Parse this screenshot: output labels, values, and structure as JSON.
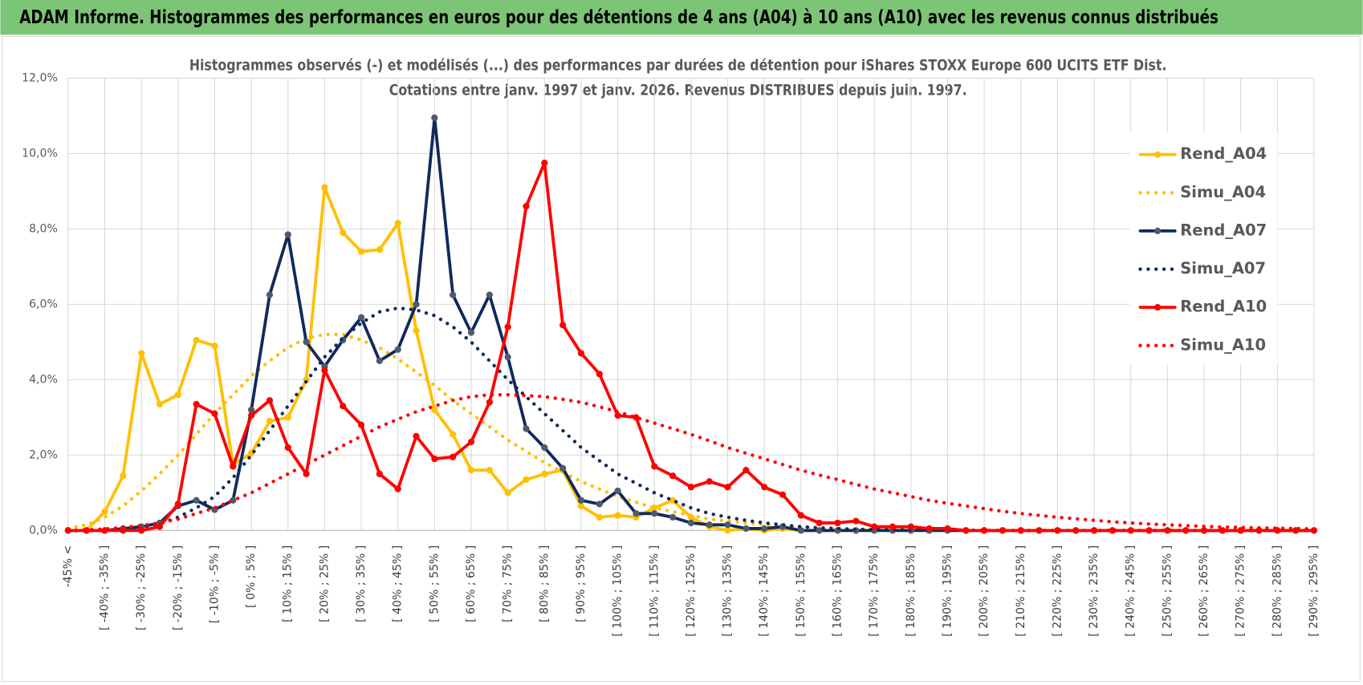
{
  "header": {
    "title": "ADAM Informe. Histogrammes des performances en euros pour des détentions de 4 ans (A04) à 10 ans (A10) avec les revenus connus distribués"
  },
  "chart_data": {
    "type": "line",
    "title": "Histogrammes observés (-) et modélisés (...) des performances par durées de détention pour iShares STOXX Europe 600 UCITS ETF Dist.",
    "subtitle": "Cotations entre janv. 1997 et janv. 2026. Revenus DISTRIBUES depuis juin. 1997.",
    "categories": [
      "-45% <",
      null,
      "[ -40% ; -35% ]",
      null,
      "[ -30% ; -25% ]",
      null,
      "[ -20% ; -15% ]",
      null,
      "[ -10% ; -5% ]",
      null,
      "[ 0% ; 5% ]",
      null,
      "[ 10% ; 15% ]",
      null,
      "[ 20% ; 25% ]",
      null,
      "[ 30% ; 35% ]",
      null,
      "[ 40% ; 45% ]",
      null,
      "[ 50% ; 55% ]",
      null,
      "[ 60% ; 65% ]",
      null,
      "[ 70% ; 75% ]",
      null,
      "[ 80% ; 85% ]",
      null,
      "[ 90% ; 95% ]",
      null,
      "[ 100% ; 105% ]",
      null,
      "[ 110% ; 115% ]",
      null,
      "[ 120% ; 125% ]",
      null,
      "[ 130% ; 135% ]",
      null,
      "[ 140% ; 145% ]",
      null,
      "[ 150% ; 155% ]",
      null,
      "[ 160% ; 165% ]",
      null,
      "[ 170% ; 175% ]",
      null,
      "[ 180% ; 185% ]",
      null,
      "[ 190% ; 195% ]",
      null,
      "[ 200% ; 205% ]",
      null,
      "[ 210% ; 215% ]",
      null,
      "[ 220% ; 225% ]",
      null,
      "[ 230% ; 235% ]",
      null,
      "[ 240% ; 245% ]",
      null,
      "[ 250% ; 255% ]",
      null,
      "[ 260% ; 265% ]",
      null,
      "[ 270% ; 275% ]",
      null,
      "[ 280% ; 285% ]",
      null,
      "[ 290% ; 295% ]"
    ],
    "series": [
      {
        "name": "Rend_A04",
        "color": "#ffc000",
        "line_style": "solid",
        "marker": true,
        "marker_color": "#ffc000",
        "values": [
          0,
          0,
          0.5,
          1.45,
          4.7,
          3.35,
          3.6,
          5.05,
          4.9,
          1.75,
          2.05,
          2.9,
          3.0,
          4.0,
          9.1,
          7.9,
          7.4,
          7.45,
          8.15,
          5.3,
          3.2,
          2.55,
          1.6,
          1.6,
          1.0,
          1.35,
          1.5,
          1.6,
          0.65,
          0.35,
          0.4,
          0.35,
          0.6,
          0.8,
          0.35,
          0.1,
          0,
          0.05,
          0,
          0.05,
          0,
          0,
          0,
          0,
          0,
          0,
          0,
          0,
          0,
          0,
          0,
          0,
          0,
          0,
          0,
          0,
          0,
          0,
          0,
          0,
          0,
          0,
          0,
          0,
          0,
          0,
          0,
          0,
          0
        ]
      },
      {
        "name": "Simu_A04",
        "color": "#ffc000",
        "line_style": "dotted",
        "marker": false,
        "values": [
          0.05,
          0.15,
          0.35,
          0.65,
          1.05,
          1.5,
          2.0,
          2.55,
          3.1,
          3.6,
          4.1,
          4.5,
          4.85,
          5.1,
          5.2,
          5.2,
          5.05,
          4.85,
          4.55,
          4.2,
          3.85,
          3.45,
          3.1,
          2.75,
          2.4,
          2.1,
          1.8,
          1.55,
          1.3,
          1.1,
          0.9,
          0.75,
          0.6,
          0.5,
          0.4,
          0.3,
          0.25,
          0.2,
          0.15,
          0.1,
          0.1,
          0.05,
          0.04,
          0.03,
          0.03,
          0.02,
          0.02,
          0.01,
          0.01,
          0,
          0,
          0,
          0,
          0,
          0,
          0,
          0,
          0,
          0,
          0,
          0,
          0,
          0,
          0,
          0,
          0,
          0,
          0,
          0
        ]
      },
      {
        "name": "Rend_A07",
        "color": "#0f2a5c",
        "line_style": "solid",
        "marker": true,
        "marker_color": "#4d5b6b",
        "values": [
          0,
          0,
          0,
          0.05,
          0.1,
          0.2,
          0.65,
          0.8,
          0.55,
          0.8,
          3.2,
          6.25,
          7.85,
          5.0,
          4.35,
          5.05,
          5.65,
          4.5,
          4.8,
          6.0,
          10.95,
          6.25,
          5.25,
          6.25,
          4.6,
          2.7,
          2.2,
          1.65,
          0.8,
          0.7,
          1.05,
          0.45,
          0.45,
          0.35,
          0.2,
          0.15,
          0.15,
          0.05,
          0.05,
          0.1,
          0,
          0,
          0,
          0,
          0,
          0,
          0,
          0,
          0,
          0,
          0,
          0,
          0,
          0,
          0,
          0,
          0,
          0,
          0,
          0,
          0,
          0,
          0,
          0,
          0,
          0,
          0,
          0,
          0
        ]
      },
      {
        "name": "Simu_A07",
        "color": "#0f2a5c",
        "line_style": "dotted",
        "marker": false,
        "values": [
          0,
          0,
          0.01,
          0.03,
          0.08,
          0.18,
          0.35,
          0.6,
          0.9,
          1.4,
          2.0,
          2.65,
          3.3,
          3.95,
          4.6,
          5.1,
          5.5,
          5.8,
          5.9,
          5.85,
          5.7,
          5.4,
          5.0,
          4.5,
          4.0,
          3.55,
          3.1,
          2.65,
          2.2,
          1.85,
          1.5,
          1.25,
          1.0,
          0.8,
          0.6,
          0.45,
          0.35,
          0.27,
          0.2,
          0.15,
          0.1,
          0.07,
          0.05,
          0.03,
          0.02,
          0.02,
          0.01,
          0.01,
          0.01,
          0.01,
          0,
          0,
          0,
          0,
          0,
          0,
          0,
          0,
          0,
          0,
          0,
          0,
          0,
          0,
          0,
          0,
          0,
          0,
          0
        ]
      },
      {
        "name": "Rend_A10",
        "color": "#ff0000",
        "line_style": "solid",
        "marker": true,
        "marker_color": "#ff0000",
        "values": [
          0,
          0,
          0,
          0,
          0,
          0.1,
          0.7,
          3.35,
          3.1,
          1.7,
          3.05,
          3.45,
          2.2,
          1.5,
          4.25,
          3.3,
          2.8,
          1.5,
          1.1,
          2.5,
          1.9,
          1.95,
          2.35,
          3.4,
          5.4,
          8.6,
          9.75,
          5.45,
          4.7,
          4.15,
          3.05,
          3.0,
          1.7,
          1.45,
          1.15,
          1.3,
          1.15,
          1.6,
          1.15,
          0.95,
          0.4,
          0.2,
          0.2,
          0.25,
          0.1,
          0.1,
          0.1,
          0.05,
          0.05,
          0,
          0,
          0,
          0,
          0,
          0,
          0,
          0,
          0,
          0,
          0,
          0,
          0,
          0,
          0,
          0,
          0,
          0,
          0,
          0
        ]
      },
      {
        "name": "Simu_A10",
        "color": "#ff0000",
        "line_style": "dotted",
        "marker": false,
        "values": [
          0,
          0.02,
          0.04,
          0.08,
          0.13,
          0.2,
          0.3,
          0.45,
          0.6,
          0.8,
          1.0,
          1.25,
          1.5,
          1.75,
          2.0,
          2.25,
          2.5,
          2.75,
          2.95,
          3.15,
          3.3,
          3.45,
          3.55,
          3.6,
          3.6,
          3.58,
          3.55,
          3.48,
          3.4,
          3.28,
          3.15,
          3.0,
          2.85,
          2.7,
          2.55,
          2.38,
          2.2,
          2.05,
          1.9,
          1.75,
          1.6,
          1.47,
          1.35,
          1.22,
          1.1,
          1.0,
          0.9,
          0.8,
          0.72,
          0.65,
          0.58,
          0.51,
          0.45,
          0.4,
          0.35,
          0.31,
          0.27,
          0.23,
          0.2,
          0.17,
          0.15,
          0.13,
          0.11,
          0.09,
          0.08,
          0.07,
          0.06,
          0.05,
          0.04
        ]
      }
    ],
    "ylim": [
      0,
      12
    ],
    "yticks": [
      {
        "value": 0,
        "label": "0,0%"
      },
      {
        "value": 2,
        "label": "2,0%"
      },
      {
        "value": 4,
        "label": "4,0%"
      },
      {
        "value": 6,
        "label": "6,0%"
      },
      {
        "value": 8,
        "label": "8,0%"
      },
      {
        "value": 10,
        "label": "10,0%"
      },
      {
        "value": 12,
        "label": "12,0%"
      }
    ],
    "grid": true,
    "legend": "right"
  }
}
